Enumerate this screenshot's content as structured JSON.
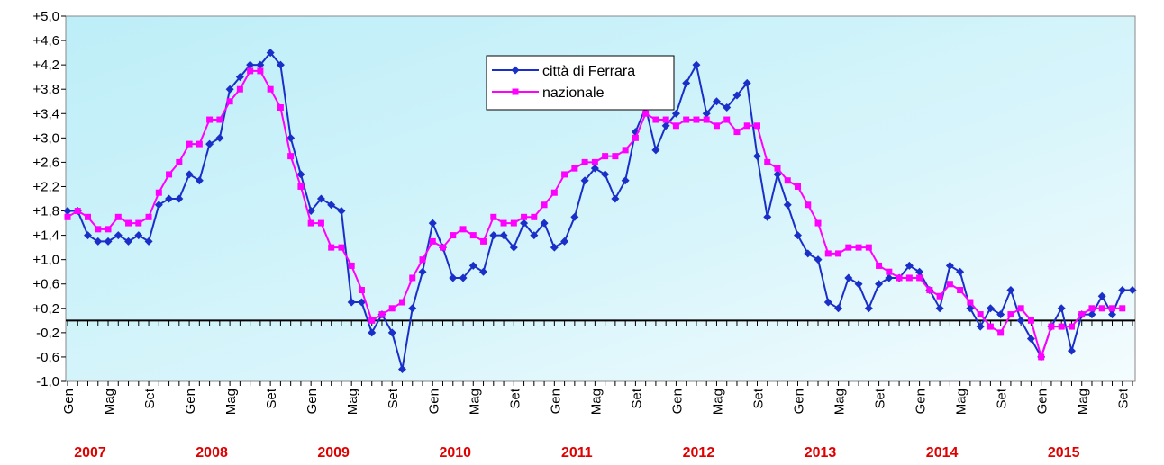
{
  "chart_data": {
    "type": "line",
    "categories": [
      "Gen",
      null,
      null,
      null,
      "Mag",
      null,
      null,
      null,
      "Set",
      null,
      null,
      null,
      "Gen",
      null,
      null,
      null,
      "Mag",
      null,
      null,
      null,
      "Set",
      null,
      null,
      null,
      "Gen",
      null,
      null,
      null,
      "Mag",
      null,
      null,
      null,
      "Set",
      null,
      null,
      null,
      "Gen",
      null,
      null,
      null,
      "Mag",
      null,
      null,
      null,
      "Set",
      null,
      null,
      null,
      "Gen",
      null,
      null,
      null,
      "Mag",
      null,
      null,
      null,
      "Set",
      null,
      null,
      null,
      "Gen",
      null,
      null,
      null,
      "Mag",
      null,
      null,
      null,
      "Set",
      null,
      null,
      null,
      "Gen",
      null,
      null,
      null,
      "Mag",
      null,
      null,
      null,
      "Set",
      null,
      null,
      null,
      "Gen",
      null,
      null,
      null,
      "Mag",
      null,
      null,
      null,
      "Set",
      null,
      null,
      null,
      "Gen",
      null,
      null,
      null,
      "Mag",
      null,
      null,
      null,
      "Set",
      null
    ],
    "year_labels": [
      "2007",
      "2008",
      "2009",
      "2010",
      "2011",
      "2012",
      "2013",
      "2014",
      "2015"
    ],
    "series": [
      {
        "name": "città di Ferrara",
        "color": "#1a2fc8",
        "marker": "diamond",
        "values": [
          1.8,
          1.8,
          1.4,
          1.3,
          1.3,
          1.4,
          1.3,
          1.4,
          1.3,
          1.9,
          2.0,
          2.0,
          2.4,
          2.3,
          2.9,
          3.0,
          3.8,
          4.0,
          4.2,
          4.2,
          4.4,
          4.2,
          3.0,
          2.4,
          1.8,
          2.0,
          1.9,
          1.8,
          0.3,
          0.3,
          -0.2,
          0.1,
          -0.2,
          -0.8,
          0.2,
          0.8,
          1.6,
          1.2,
          0.7,
          0.7,
          0.9,
          0.8,
          1.4,
          1.4,
          1.2,
          1.6,
          1.4,
          1.6,
          1.2,
          1.3,
          1.7,
          2.3,
          2.5,
          2.4,
          2.0,
          2.3,
          3.1,
          3.5,
          2.8,
          3.2,
          3.4,
          3.9,
          4.2,
          3.4,
          3.6,
          3.5,
          3.7,
          3.9,
          2.7,
          1.7,
          2.4,
          1.9,
          1.4,
          1.1,
          1.0,
          0.3,
          0.2,
          0.7,
          0.6,
          0.2,
          0.6,
          0.7,
          0.7,
          0.9,
          0.8,
          0.5,
          0.2,
          0.9,
          0.8,
          0.2,
          -0.1,
          0.2,
          0.1,
          0.5,
          0.0,
          -0.3,
          -0.6,
          -0.1,
          0.2,
          -0.5,
          0.1,
          0.1,
          0.4,
          0.1,
          0.5,
          0.5
        ]
      },
      {
        "name": "nazionale",
        "color": "#ff00ff",
        "marker": "square",
        "values": [
          1.7,
          1.8,
          1.7,
          1.5,
          1.5,
          1.7,
          1.6,
          1.6,
          1.7,
          2.1,
          2.4,
          2.6,
          2.9,
          2.9,
          3.3,
          3.3,
          3.6,
          3.8,
          4.1,
          4.1,
          3.8,
          3.5,
          2.7,
          2.2,
          1.6,
          1.6,
          1.2,
          1.2,
          0.9,
          0.5,
          0.0,
          0.1,
          0.2,
          0.3,
          0.7,
          1.0,
          1.3,
          1.2,
          1.4,
          1.5,
          1.4,
          1.3,
          1.7,
          1.6,
          1.6,
          1.7,
          1.7,
          1.9,
          2.1,
          2.4,
          2.5,
          2.6,
          2.6,
          2.7,
          2.7,
          2.8,
          3.0,
          3.4,
          3.3,
          3.3,
          3.2,
          3.3,
          3.3,
          3.3,
          3.2,
          3.3,
          3.1,
          3.2,
          3.2,
          2.6,
          2.5,
          2.3,
          2.2,
          1.9,
          1.6,
          1.1,
          1.1,
          1.2,
          1.2,
          1.2,
          0.9,
          0.8,
          0.7,
          0.7,
          0.7,
          0.5,
          0.4,
          0.6,
          0.5,
          0.3,
          0.1,
          -0.1,
          -0.2,
          0.1,
          0.2,
          0.0,
          -0.6,
          -0.1,
          -0.1,
          -0.1,
          0.1,
          0.2,
          0.2,
          0.2,
          0.2,
          null
        ]
      }
    ],
    "ylim": [
      -1.0,
      5.0
    ],
    "yticks": [
      {
        "value": -1.0,
        "label": "-1,0"
      },
      {
        "value": -0.6,
        "label": "-0,6"
      },
      {
        "value": -0.2,
        "label": "-0,2"
      },
      {
        "value": 0.2,
        "label": "+0,2"
      },
      {
        "value": 0.6,
        "label": "+0,6"
      },
      {
        "value": 1.0,
        "label": "+1,0"
      },
      {
        "value": 1.4,
        "label": "+1,4"
      },
      {
        "value": 1.8,
        "label": "+1,8"
      },
      {
        "value": 2.2,
        "label": "+2,2"
      },
      {
        "value": 2.6,
        "label": "+2,6"
      },
      {
        "value": 3.0,
        "label": "+3,0"
      },
      {
        "value": 3.4,
        "label": "+3,4"
      },
      {
        "value": 3.8,
        "label": "+3,8"
      },
      {
        "value": 4.2,
        "label": "+4,2"
      },
      {
        "value": 4.6,
        "label": "+4,6"
      },
      {
        "value": 5.0,
        "label": "+5,0"
      }
    ],
    "reference_line": 0,
    "legend": "top-center"
  }
}
